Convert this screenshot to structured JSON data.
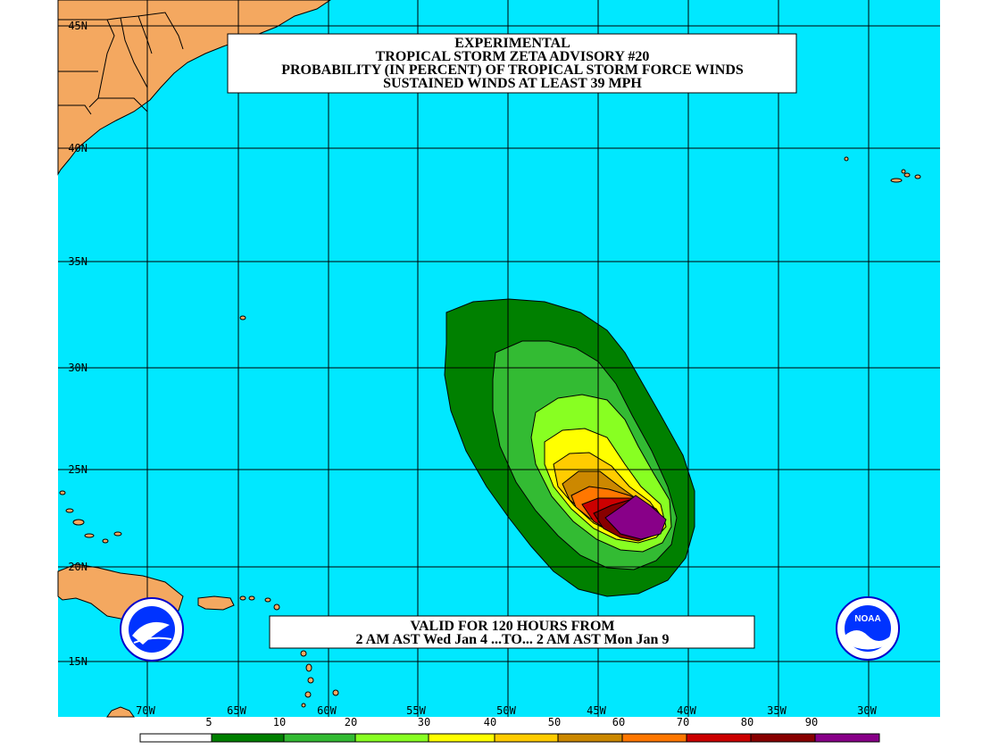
{
  "title": {
    "line1": "EXPERIMENTAL",
    "line2": "TROPICAL STORM ZETA ADVISORY #20",
    "line3": "PROBABILITY (IN PERCENT) OF TROPICAL STORM FORCE WINDS",
    "line4": "SUSTAINED WINDS AT LEAST 39 MPH"
  },
  "valid": {
    "line1": "VALID FOR 120 HOURS FROM",
    "line2": "2 AM AST Wed Jan 4 ...TO... 2 AM AST Mon Jan 9"
  },
  "lat_labels": [
    "45N",
    "40N",
    "35N",
    "30N",
    "25N",
    "20N",
    "15N"
  ],
  "lon_labels": [
    "70W",
    "65W",
    "60W",
    "55W",
    "50W",
    "45W",
    "40W",
    "35W",
    "30W"
  ],
  "legend": {
    "values": [
      "5",
      "10",
      "20",
      "30",
      "40",
      "50",
      "60",
      "70",
      "80",
      "90"
    ],
    "colors": [
      "#ffffff",
      "#008000",
      "#33bb33",
      "#88ff22",
      "#ffff00",
      "#ffcc00",
      "#cc8800",
      "#ff7700",
      "#cc0000",
      "#880000",
      "#880088"
    ]
  },
  "colors": {
    "ocean": "#00e8ff",
    "land": "#f4a860",
    "grid": "#000000"
  },
  "logos": {
    "left": "nws-logo",
    "right": "noaa-logo",
    "right_text": "NOAA"
  }
}
